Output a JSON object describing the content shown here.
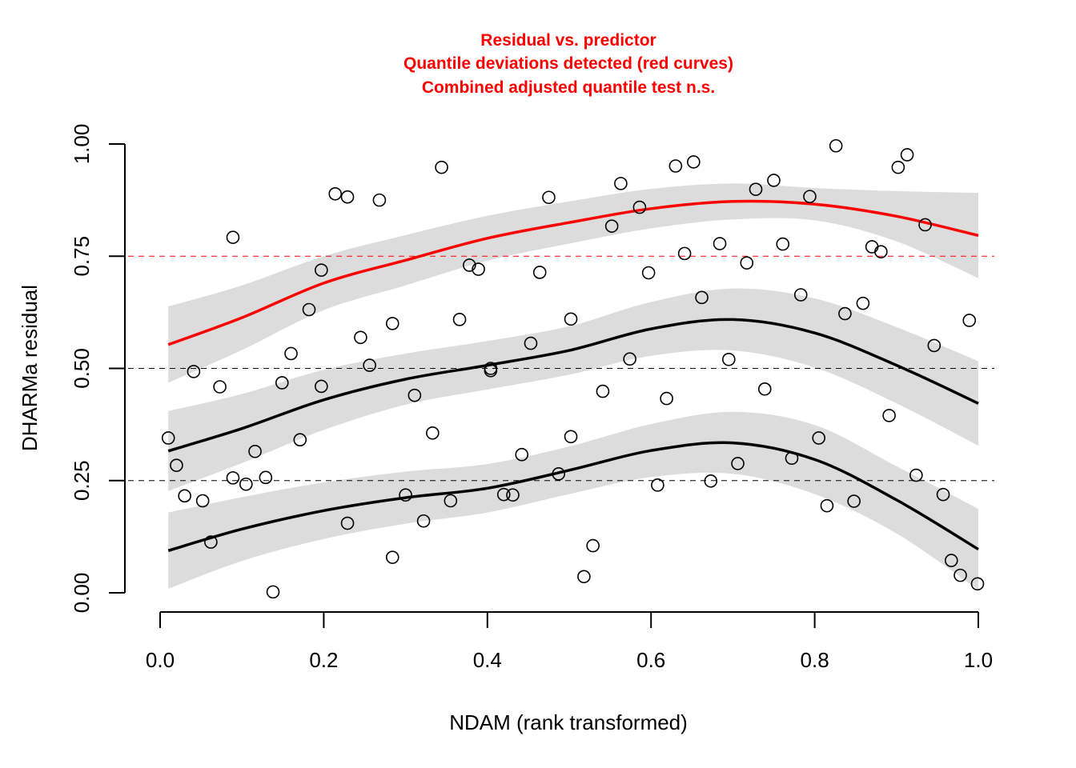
{
  "chart_data": {
    "type": "scatter",
    "title_lines": [
      "Residual vs. predictor",
      "Quantile deviations detected (red curves)",
      "Combined adjusted quantile test n.s."
    ],
    "xlabel": "NDAM (rank transformed)",
    "ylabel": "DHARMa residual",
    "xlim": [
      0.0,
      1.0
    ],
    "ylim": [
      0.0,
      1.0
    ],
    "x_ticks": [
      0.0,
      0.2,
      0.4,
      0.6,
      0.8,
      1.0
    ],
    "x_tick_labels": [
      "0.0",
      "0.2",
      "0.4",
      "0.6",
      "0.8",
      "1.0"
    ],
    "y_ticks": [
      0.0,
      0.25,
      0.5,
      0.75,
      1.0
    ],
    "y_tick_labels": [
      "0.00",
      "0.25",
      "0.50",
      "0.75",
      "1.00"
    ],
    "reference_lines": [
      {
        "y": 0.25,
        "color": "#000000"
      },
      {
        "y": 0.5,
        "color": "#000000"
      },
      {
        "y": 0.75,
        "color": "#ff0000"
      }
    ],
    "colors": {
      "points": "#000000",
      "quantile_ok": "#000000",
      "quantile_deviation": "#ff0000",
      "band": "#dcdcdc"
    },
    "points": [
      [
        0.01,
        0.345
      ],
      [
        0.02,
        0.284
      ],
      [
        0.03,
        0.216
      ],
      [
        0.041,
        0.493
      ],
      [
        0.052,
        0.205
      ],
      [
        0.062,
        0.113
      ],
      [
        0.073,
        0.459
      ],
      [
        0.089,
        0.792
      ],
      [
        0.089,
        0.256
      ],
      [
        0.105,
        0.242
      ],
      [
        0.116,
        0.315
      ],
      [
        0.129,
        0.257
      ],
      [
        0.138,
        0.002
      ],
      [
        0.149,
        0.468
      ],
      [
        0.16,
        0.533
      ],
      [
        0.171,
        0.341
      ],
      [
        0.182,
        0.631
      ],
      [
        0.197,
        0.719
      ],
      [
        0.197,
        0.46
      ],
      [
        0.214,
        0.889
      ],
      [
        0.229,
        0.882
      ],
      [
        0.229,
        0.155
      ],
      [
        0.245,
        0.569
      ],
      [
        0.256,
        0.507
      ],
      [
        0.268,
        0.875
      ],
      [
        0.284,
        0.6
      ],
      [
        0.284,
        0.079
      ],
      [
        0.3,
        0.218
      ],
      [
        0.311,
        0.44
      ],
      [
        0.322,
        0.16
      ],
      [
        0.333,
        0.356
      ],
      [
        0.344,
        0.948
      ],
      [
        0.355,
        0.205
      ],
      [
        0.366,
        0.609
      ],
      [
        0.378,
        0.73
      ],
      [
        0.389,
        0.721
      ],
      [
        0.404,
        0.5
      ],
      [
        0.404,
        0.495
      ],
      [
        0.42,
        0.219
      ],
      [
        0.431,
        0.218
      ],
      [
        0.442,
        0.308
      ],
      [
        0.453,
        0.556
      ],
      [
        0.464,
        0.714
      ],
      [
        0.475,
        0.881
      ],
      [
        0.487,
        0.265
      ],
      [
        0.502,
        0.61
      ],
      [
        0.502,
        0.348
      ],
      [
        0.518,
        0.036
      ],
      [
        0.529,
        0.105
      ],
      [
        0.541,
        0.449
      ],
      [
        0.552,
        0.817
      ],
      [
        0.563,
        0.912
      ],
      [
        0.574,
        0.521
      ],
      [
        0.586,
        0.859
      ],
      [
        0.597,
        0.713
      ],
      [
        0.608,
        0.24
      ],
      [
        0.619,
        0.433
      ],
      [
        0.63,
        0.951
      ],
      [
        0.641,
        0.756
      ],
      [
        0.652,
        0.96
      ],
      [
        0.662,
        0.658
      ],
      [
        0.673,
        0.249
      ],
      [
        0.684,
        0.778
      ],
      [
        0.695,
        0.52
      ],
      [
        0.706,
        0.288
      ],
      [
        0.717,
        0.735
      ],
      [
        0.728,
        0.899
      ],
      [
        0.739,
        0.454
      ],
      [
        0.75,
        0.919
      ],
      [
        0.761,
        0.777
      ],
      [
        0.772,
        0.3
      ],
      [
        0.783,
        0.664
      ],
      [
        0.794,
        0.883
      ],
      [
        0.805,
        0.345
      ],
      [
        0.815,
        0.194
      ],
      [
        0.826,
        0.996
      ],
      [
        0.837,
        0.622
      ],
      [
        0.848,
        0.204
      ],
      [
        0.859,
        0.645
      ],
      [
        0.87,
        0.771
      ],
      [
        0.881,
        0.76
      ],
      [
        0.891,
        0.395
      ],
      [
        0.902,
        0.948
      ],
      [
        0.913,
        0.976
      ],
      [
        0.924,
        0.262
      ],
      [
        0.935,
        0.82
      ],
      [
        0.946,
        0.551
      ],
      [
        0.957,
        0.219
      ],
      [
        0.967,
        0.072
      ],
      [
        0.978,
        0.039
      ],
      [
        0.989,
        0.607
      ],
      [
        0.999,
        0.02
      ]
    ],
    "quantile_curves": [
      {
        "quantile": 0.25,
        "color": "#000000",
        "line": [
          [
            0.01,
            0.094
          ],
          [
            0.1,
            0.142
          ],
          [
            0.2,
            0.183
          ],
          [
            0.3,
            0.212
          ],
          [
            0.4,
            0.233
          ],
          [
            0.5,
            0.273
          ],
          [
            0.6,
            0.317
          ],
          [
            0.7,
            0.334
          ],
          [
            0.8,
            0.297
          ],
          [
            0.9,
            0.207
          ],
          [
            1.0,
            0.097
          ]
        ],
        "band_upper": [
          [
            0.01,
            0.179
          ],
          [
            0.1,
            0.213
          ],
          [
            0.2,
            0.246
          ],
          [
            0.3,
            0.27
          ],
          [
            0.4,
            0.287
          ],
          [
            0.5,
            0.326
          ],
          [
            0.6,
            0.376
          ],
          [
            0.7,
            0.403
          ],
          [
            0.8,
            0.374
          ],
          [
            0.9,
            0.282
          ],
          [
            1.0,
            0.187
          ]
        ],
        "band_lower": [
          [
            0.01,
            0.009
          ],
          [
            0.1,
            0.071
          ],
          [
            0.2,
            0.12
          ],
          [
            0.3,
            0.154
          ],
          [
            0.4,
            0.179
          ],
          [
            0.5,
            0.22
          ],
          [
            0.6,
            0.258
          ],
          [
            0.7,
            0.265
          ],
          [
            0.8,
            0.22
          ],
          [
            0.9,
            0.132
          ],
          [
            1.0,
            0.007
          ]
        ]
      },
      {
        "quantile": 0.5,
        "color": "#000000",
        "line": [
          [
            0.01,
            0.316
          ],
          [
            0.1,
            0.366
          ],
          [
            0.2,
            0.43
          ],
          [
            0.3,
            0.476
          ],
          [
            0.4,
            0.507
          ],
          [
            0.5,
            0.54
          ],
          [
            0.6,
            0.588
          ],
          [
            0.7,
            0.609
          ],
          [
            0.8,
            0.579
          ],
          [
            0.9,
            0.507
          ],
          [
            1.0,
            0.422
          ]
        ],
        "band_upper": [
          [
            0.01,
            0.405
          ],
          [
            0.1,
            0.443
          ],
          [
            0.2,
            0.497
          ],
          [
            0.3,
            0.533
          ],
          [
            0.4,
            0.561
          ],
          [
            0.5,
            0.594
          ],
          [
            0.6,
            0.648
          ],
          [
            0.7,
            0.678
          ],
          [
            0.8,
            0.656
          ],
          [
            0.9,
            0.592
          ],
          [
            1.0,
            0.516
          ]
        ],
        "band_lower": [
          [
            0.01,
            0.227
          ],
          [
            0.1,
            0.289
          ],
          [
            0.2,
            0.363
          ],
          [
            0.3,
            0.419
          ],
          [
            0.4,
            0.453
          ],
          [
            0.5,
            0.486
          ],
          [
            0.6,
            0.528
          ],
          [
            0.7,
            0.54
          ],
          [
            0.8,
            0.502
          ],
          [
            0.9,
            0.422
          ],
          [
            1.0,
            0.328
          ]
        ]
      },
      {
        "quantile": 0.75,
        "color": "#ff0000",
        "line": [
          [
            0.01,
            0.553
          ],
          [
            0.1,
            0.613
          ],
          [
            0.2,
            0.69
          ],
          [
            0.3,
            0.741
          ],
          [
            0.4,
            0.79
          ],
          [
            0.5,
            0.825
          ],
          [
            0.6,
            0.856
          ],
          [
            0.7,
            0.872
          ],
          [
            0.8,
            0.866
          ],
          [
            0.9,
            0.839
          ],
          [
            1.0,
            0.796
          ]
        ],
        "band_upper": [
          [
            0.01,
            0.638
          ],
          [
            0.1,
            0.685
          ],
          [
            0.2,
            0.75
          ],
          [
            0.3,
            0.797
          ],
          [
            0.4,
            0.84
          ],
          [
            0.5,
            0.872
          ],
          [
            0.6,
            0.9
          ],
          [
            0.7,
            0.912
          ],
          [
            0.8,
            0.902
          ],
          [
            0.9,
            0.895
          ],
          [
            1.0,
            0.891
          ]
        ],
        "band_lower": [
          [
            0.01,
            0.468
          ],
          [
            0.1,
            0.541
          ],
          [
            0.2,
            0.63
          ],
          [
            0.3,
            0.685
          ],
          [
            0.4,
            0.74
          ],
          [
            0.5,
            0.778
          ],
          [
            0.6,
            0.812
          ],
          [
            0.7,
            0.832
          ],
          [
            0.8,
            0.83
          ],
          [
            0.9,
            0.783
          ],
          [
            1.0,
            0.701
          ]
        ]
      }
    ]
  }
}
